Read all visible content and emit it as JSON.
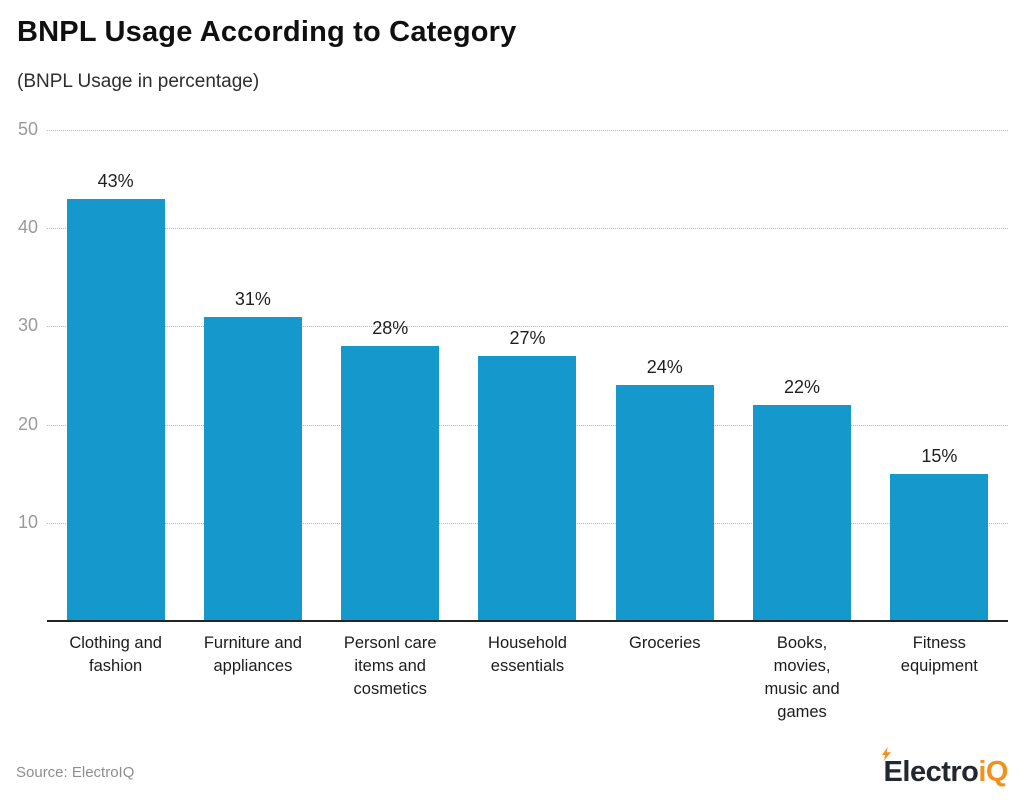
{
  "page": {
    "title": "BNPL Usage According to Category",
    "subtitle": "(BNPL Usage in percentage)",
    "source": "Source: ElectroIQ",
    "brand": {
      "name_dark": "Electro",
      "name_accent": "iQ",
      "accent_color": "#f0921e",
      "dark_color": "#232730",
      "icon": "lightning-bolt-icon"
    }
  },
  "chart_data": {
    "type": "bar",
    "title": "BNPL Usage According to Category",
    "subtitle": "(BNPL Usage in percentage)",
    "categories": [
      "Clothing and\nfashion",
      "Furniture and\nappliances",
      "Personl care\nitems and\ncosmetics",
      "Household\nessentials",
      "Groceries",
      "Books,\nmovies,\nmusic and\ngames",
      "Fitness\nequipment"
    ],
    "values": [
      43,
      31,
      28,
      27,
      24,
      22,
      15
    ],
    "data_labels": [
      "43%",
      "31%",
      "28%",
      "27%",
      "24%",
      "22%",
      "15%"
    ],
    "value_suffix": "%",
    "xlabel": "",
    "ylabel": "",
    "ylim": [
      0,
      50
    ],
    "yticks": [
      50,
      40,
      30,
      20,
      10
    ],
    "grid": "horizontal-dotted",
    "legend": "none",
    "bar_color": "#1598cb",
    "axis_line_color": "#242424",
    "tick_label_color": "#9a9a9a"
  }
}
